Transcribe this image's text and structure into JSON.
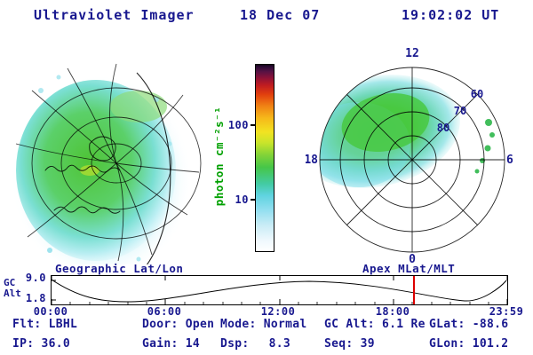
{
  "colors": {
    "text_navy": "#18188f",
    "label_green": "#00a000",
    "marker_red": "#dd0000",
    "aurora_green": "#46c648",
    "aurora_cyan": "#93dff0"
  },
  "header": {
    "title": "Ultraviolet Imager",
    "date": "18 Dec 07",
    "time": "19:02:02 UT"
  },
  "geo_plot": {
    "title": "Geographic Lat/Lon"
  },
  "polar_plot": {
    "title": "Apex MLat/MLT",
    "mlt_top": "12",
    "mlt_left": "18",
    "mlt_right": "6",
    "mlt_bottom": "0",
    "mlat_rings": [
      "60",
      "70",
      "80"
    ]
  },
  "colorbar": {
    "label": "photon cm⁻²s⁻¹",
    "tick_upper": "100",
    "tick_lower": "10"
  },
  "timeline": {
    "ylabel_line1": "GC",
    "ylabel_line2": "Alt",
    "ytick_top": "9.0",
    "ytick_bottom": "1.8",
    "xticks": [
      "00:00",
      "06:00",
      "12:00",
      "18:00",
      "23:59"
    ],
    "current_time_frac": 0.793
  },
  "status": {
    "flt_label": "Flt:",
    "flt": "LBHL",
    "door_label": "Door:",
    "door": "Open",
    "mode_label": "Mode:",
    "mode": "Normal",
    "gcalt_label": "GC Alt:",
    "gcalt": "6.1 Re",
    "glat_label": "GLat:",
    "glat": "-88.6",
    "ip_label": "IP:",
    "ip": "36.0",
    "gain_label": "Gain:",
    "gain": "14",
    "dsp_label": "Dsp:",
    "dsp": "8.3",
    "seq_label": "Seq:",
    "seq": "39",
    "glon_label": "GLon:",
    "glon": "101.2"
  }
}
